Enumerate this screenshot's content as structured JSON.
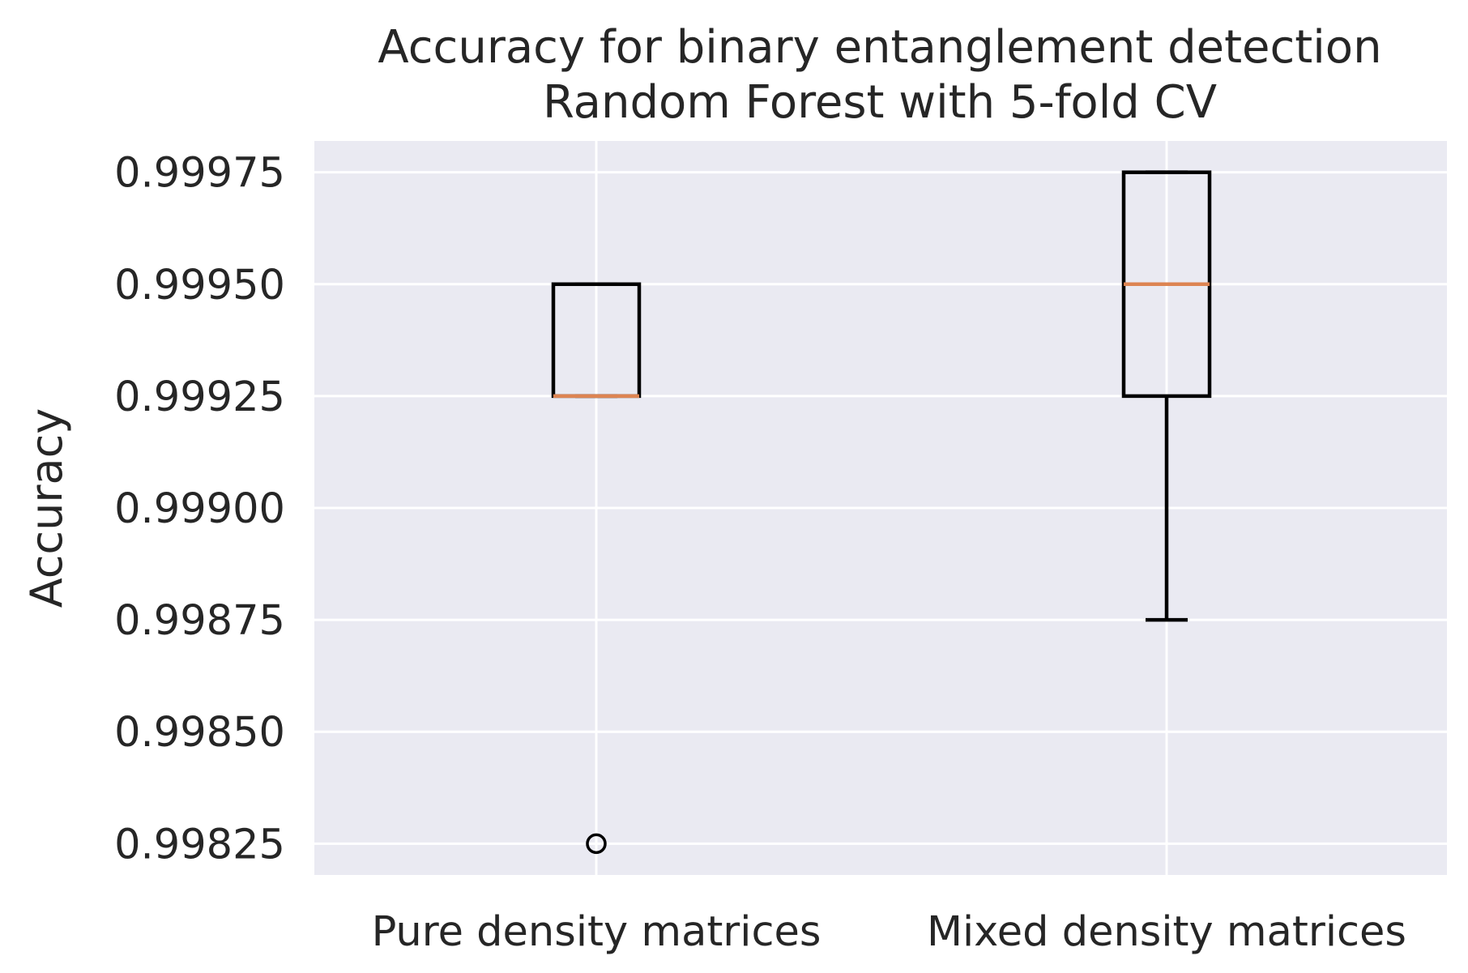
{
  "chart_data": {
    "type": "box",
    "title": "Accuracy for binary entanglement detection",
    "subtitle": "Random Forest with 5-fold CV",
    "xlabel": "",
    "ylabel": "Accuracy",
    "ylim": [
      0.99818,
      0.99982
    ],
    "yticks": [
      0.99825,
      0.9985,
      0.99875,
      0.999,
      0.99925,
      0.9995,
      0.99975
    ],
    "ytick_labels": [
      "0.99825",
      "0.99850",
      "0.99875",
      "0.99900",
      "0.99925",
      "0.99950",
      "0.99975"
    ],
    "grid": true,
    "legend": "none",
    "categories": [
      "Pure density matrices",
      "Mixed density matrices"
    ],
    "boxes": [
      {
        "category": "Pure density matrices",
        "whisker_low": 0.99925,
        "q1": 0.99925,
        "median": 0.99925,
        "q3": 0.9995,
        "whisker_high": 0.9995,
        "outliers": [
          0.99825
        ]
      },
      {
        "category": "Mixed density matrices",
        "whisker_low": 0.99875,
        "q1": 0.99925,
        "median": 0.9995,
        "q3": 0.99975,
        "whisker_high": 0.99975,
        "outliers": []
      }
    ],
    "colors": {
      "plot_background": "#EAEAF2",
      "grid": "#FFFFFF",
      "box_line": "#000000",
      "median_line": "#DD8452",
      "text": "#262626"
    }
  }
}
